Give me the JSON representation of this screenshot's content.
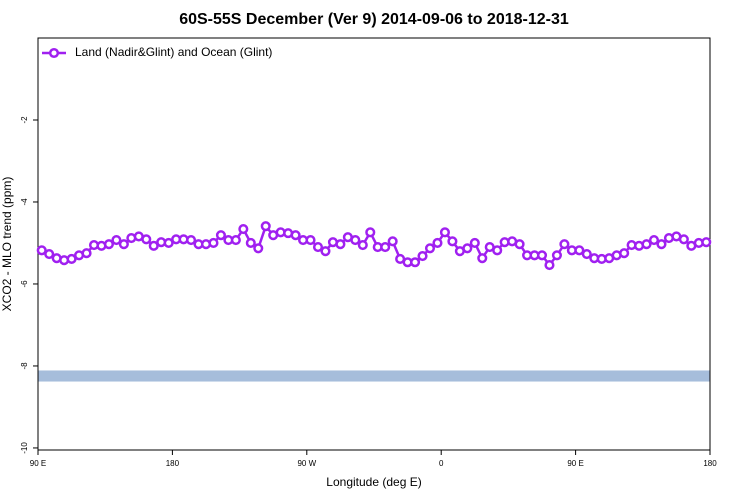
{
  "chart_data": {
    "type": "line",
    "title": "60S-55S December (Ver 9)   2014-09-06 to 2018-12-31",
    "x_label": "Longitude (deg E)",
    "y_label": "XCO2 - MLO trend (ppm)",
    "xlim": [
      90,
      540
    ],
    "ylim": [
      -10.05,
      0
    ],
    "xticks": [
      {
        "value": 90,
        "label": "90 E"
      },
      180,
      {
        "value": 270,
        "label": "90 W"
      },
      {
        "value": 360,
        "label": "0"
      },
      {
        "value": 450,
        "label": "90 E"
      },
      {
        "value": 540,
        "label": "180"
      }
    ],
    "yticks": [
      -10,
      -8,
      -6,
      -4,
      -2
    ],
    "legend": "upper left",
    "band": [
      -8.38,
      -8.11
    ],
    "band_color": "#a6bddb",
    "series": [
      {
        "name": "Land (Nadir&Glint) and Ocean (Glint)",
        "color": "#a020f0",
        "x": [
          92.5,
          97.5,
          102.5,
          107.5,
          112.5,
          117.5,
          122.5,
          127.5,
          132.5,
          137.5,
          142.5,
          147.5,
          152.5,
          157.5,
          162.5,
          167.5,
          172.5,
          177.5,
          182.5,
          187.5,
          192.5,
          197.5,
          202.5,
          207.5,
          212.5,
          217.5,
          222.5,
          227.5,
          232.5,
          237.5,
          242.5,
          247.5,
          252.5,
          257.5,
          262.5,
          267.5,
          272.5,
          277.5,
          282.5,
          287.5,
          292.5,
          297.5,
          302.5,
          307.5,
          312.5,
          317.5,
          322.5,
          327.5,
          332.5,
          337.5,
          342.5,
          347.5,
          352.5,
          357.5,
          362.5,
          367.5,
          372.5,
          377.5,
          382.5,
          387.5,
          392.5,
          397.5,
          402.5,
          407.5,
          412.5,
          417.5,
          422.5,
          427.5,
          432.5,
          437.5,
          442.5,
          447.5,
          452.5,
          457.5,
          462.5,
          467.5,
          472.5,
          477.5,
          482.5,
          487.5,
          492.5,
          497.5,
          502.5,
          507.5,
          512.5,
          517.5,
          522.5,
          527.5,
          532.5,
          537.5
        ],
        "values": [
          -5.18,
          -5.27,
          -5.37,
          -5.42,
          -5.39,
          -5.3,
          -5.25,
          -5.05,
          -5.07,
          -5.03,
          -4.93,
          -5.03,
          -4.88,
          -4.84,
          -4.91,
          -5.07,
          -4.98,
          -5.0,
          -4.91,
          -4.91,
          -4.93,
          -5.03,
          -5.03,
          -5.0,
          -4.81,
          -4.93,
          -4.93,
          -4.66,
          -5.0,
          -5.13,
          -4.59,
          -4.81,
          -4.74,
          -4.76,
          -4.81,
          -4.93,
          -4.93,
          -5.1,
          -5.2,
          -4.98,
          -5.03,
          -4.86,
          -4.93,
          -5.05,
          -4.74,
          -5.1,
          -5.1,
          -4.96,
          -5.39,
          -5.47,
          -5.47,
          -5.32,
          -5.13,
          -5.0,
          -4.74,
          -4.96,
          -5.2,
          -5.13,
          -5.0,
          -5.37,
          -5.1,
          -5.18,
          -4.98,
          -4.96,
          -5.03,
          -5.3,
          -5.3,
          -5.3,
          -5.54,
          -5.3,
          -5.03,
          -5.18,
          -5.18,
          -5.27,
          -5.37,
          -5.39,
          -5.37,
          -5.3,
          -5.25,
          -5.05,
          -5.07,
          -5.03,
          -4.93,
          -5.03,
          -4.88,
          -4.84,
          -4.91,
          -5.07,
          -5.0,
          -4.98
        ]
      }
    ]
  }
}
